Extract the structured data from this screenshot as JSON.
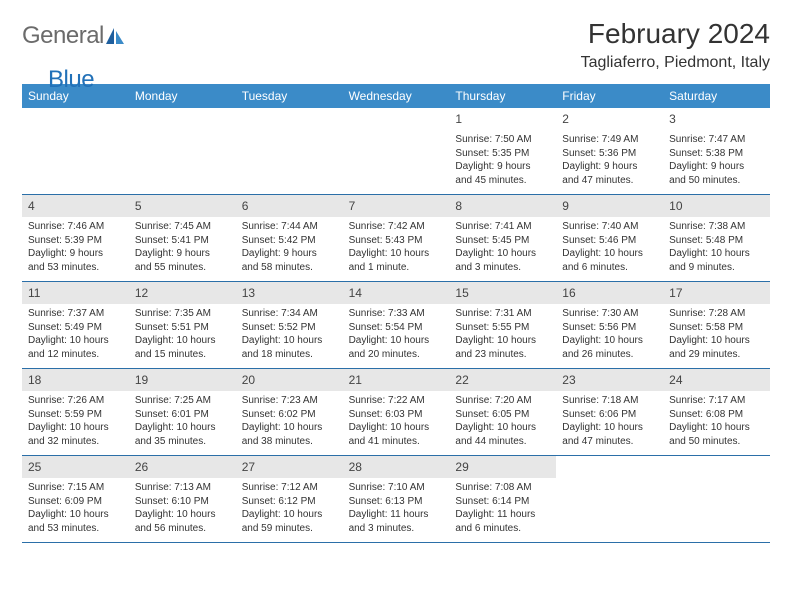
{
  "logo": {
    "text1": "General",
    "text2": "Blue"
  },
  "title": "February 2024",
  "location": "Tagliaferro, Piedmont, Italy",
  "colors": {
    "header_bg": "#3b8bc8",
    "header_text": "#ffffff",
    "daynum_bg": "#e7e7e7",
    "border": "#2b6fa8",
    "logo_gray": "#6b6b6b",
    "logo_blue": "#2271b8"
  },
  "weekdays": [
    "Sunday",
    "Monday",
    "Tuesday",
    "Wednesday",
    "Thursday",
    "Friday",
    "Saturday"
  ],
  "weeks": [
    [
      null,
      null,
      null,
      null,
      {
        "n": "1",
        "sunrise": "Sunrise: 7:50 AM",
        "sunset": "Sunset: 5:35 PM",
        "dl1": "Daylight: 9 hours",
        "dl2": "and 45 minutes."
      },
      {
        "n": "2",
        "sunrise": "Sunrise: 7:49 AM",
        "sunset": "Sunset: 5:36 PM",
        "dl1": "Daylight: 9 hours",
        "dl2": "and 47 minutes."
      },
      {
        "n": "3",
        "sunrise": "Sunrise: 7:47 AM",
        "sunset": "Sunset: 5:38 PM",
        "dl1": "Daylight: 9 hours",
        "dl2": "and 50 minutes."
      }
    ],
    [
      {
        "n": "4",
        "sunrise": "Sunrise: 7:46 AM",
        "sunset": "Sunset: 5:39 PM",
        "dl1": "Daylight: 9 hours",
        "dl2": "and 53 minutes."
      },
      {
        "n": "5",
        "sunrise": "Sunrise: 7:45 AM",
        "sunset": "Sunset: 5:41 PM",
        "dl1": "Daylight: 9 hours",
        "dl2": "and 55 minutes."
      },
      {
        "n": "6",
        "sunrise": "Sunrise: 7:44 AM",
        "sunset": "Sunset: 5:42 PM",
        "dl1": "Daylight: 9 hours",
        "dl2": "and 58 minutes."
      },
      {
        "n": "7",
        "sunrise": "Sunrise: 7:42 AM",
        "sunset": "Sunset: 5:43 PM",
        "dl1": "Daylight: 10 hours",
        "dl2": "and 1 minute."
      },
      {
        "n": "8",
        "sunrise": "Sunrise: 7:41 AM",
        "sunset": "Sunset: 5:45 PM",
        "dl1": "Daylight: 10 hours",
        "dl2": "and 3 minutes."
      },
      {
        "n": "9",
        "sunrise": "Sunrise: 7:40 AM",
        "sunset": "Sunset: 5:46 PM",
        "dl1": "Daylight: 10 hours",
        "dl2": "and 6 minutes."
      },
      {
        "n": "10",
        "sunrise": "Sunrise: 7:38 AM",
        "sunset": "Sunset: 5:48 PM",
        "dl1": "Daylight: 10 hours",
        "dl2": "and 9 minutes."
      }
    ],
    [
      {
        "n": "11",
        "sunrise": "Sunrise: 7:37 AM",
        "sunset": "Sunset: 5:49 PM",
        "dl1": "Daylight: 10 hours",
        "dl2": "and 12 minutes."
      },
      {
        "n": "12",
        "sunrise": "Sunrise: 7:35 AM",
        "sunset": "Sunset: 5:51 PM",
        "dl1": "Daylight: 10 hours",
        "dl2": "and 15 minutes."
      },
      {
        "n": "13",
        "sunrise": "Sunrise: 7:34 AM",
        "sunset": "Sunset: 5:52 PM",
        "dl1": "Daylight: 10 hours",
        "dl2": "and 18 minutes."
      },
      {
        "n": "14",
        "sunrise": "Sunrise: 7:33 AM",
        "sunset": "Sunset: 5:54 PM",
        "dl1": "Daylight: 10 hours",
        "dl2": "and 20 minutes."
      },
      {
        "n": "15",
        "sunrise": "Sunrise: 7:31 AM",
        "sunset": "Sunset: 5:55 PM",
        "dl1": "Daylight: 10 hours",
        "dl2": "and 23 minutes."
      },
      {
        "n": "16",
        "sunrise": "Sunrise: 7:30 AM",
        "sunset": "Sunset: 5:56 PM",
        "dl1": "Daylight: 10 hours",
        "dl2": "and 26 minutes."
      },
      {
        "n": "17",
        "sunrise": "Sunrise: 7:28 AM",
        "sunset": "Sunset: 5:58 PM",
        "dl1": "Daylight: 10 hours",
        "dl2": "and 29 minutes."
      }
    ],
    [
      {
        "n": "18",
        "sunrise": "Sunrise: 7:26 AM",
        "sunset": "Sunset: 5:59 PM",
        "dl1": "Daylight: 10 hours",
        "dl2": "and 32 minutes."
      },
      {
        "n": "19",
        "sunrise": "Sunrise: 7:25 AM",
        "sunset": "Sunset: 6:01 PM",
        "dl1": "Daylight: 10 hours",
        "dl2": "and 35 minutes."
      },
      {
        "n": "20",
        "sunrise": "Sunrise: 7:23 AM",
        "sunset": "Sunset: 6:02 PM",
        "dl1": "Daylight: 10 hours",
        "dl2": "and 38 minutes."
      },
      {
        "n": "21",
        "sunrise": "Sunrise: 7:22 AM",
        "sunset": "Sunset: 6:03 PM",
        "dl1": "Daylight: 10 hours",
        "dl2": "and 41 minutes."
      },
      {
        "n": "22",
        "sunrise": "Sunrise: 7:20 AM",
        "sunset": "Sunset: 6:05 PM",
        "dl1": "Daylight: 10 hours",
        "dl2": "and 44 minutes."
      },
      {
        "n": "23",
        "sunrise": "Sunrise: 7:18 AM",
        "sunset": "Sunset: 6:06 PM",
        "dl1": "Daylight: 10 hours",
        "dl2": "and 47 minutes."
      },
      {
        "n": "24",
        "sunrise": "Sunrise: 7:17 AM",
        "sunset": "Sunset: 6:08 PM",
        "dl1": "Daylight: 10 hours",
        "dl2": "and 50 minutes."
      }
    ],
    [
      {
        "n": "25",
        "sunrise": "Sunrise: 7:15 AM",
        "sunset": "Sunset: 6:09 PM",
        "dl1": "Daylight: 10 hours",
        "dl2": "and 53 minutes."
      },
      {
        "n": "26",
        "sunrise": "Sunrise: 7:13 AM",
        "sunset": "Sunset: 6:10 PM",
        "dl1": "Daylight: 10 hours",
        "dl2": "and 56 minutes."
      },
      {
        "n": "27",
        "sunrise": "Sunrise: 7:12 AM",
        "sunset": "Sunset: 6:12 PM",
        "dl1": "Daylight: 10 hours",
        "dl2": "and 59 minutes."
      },
      {
        "n": "28",
        "sunrise": "Sunrise: 7:10 AM",
        "sunset": "Sunset: 6:13 PM",
        "dl1": "Daylight: 11 hours",
        "dl2": "and 3 minutes."
      },
      {
        "n": "29",
        "sunrise": "Sunrise: 7:08 AM",
        "sunset": "Sunset: 6:14 PM",
        "dl1": "Daylight: 11 hours",
        "dl2": "and 6 minutes."
      },
      null,
      null
    ]
  ]
}
